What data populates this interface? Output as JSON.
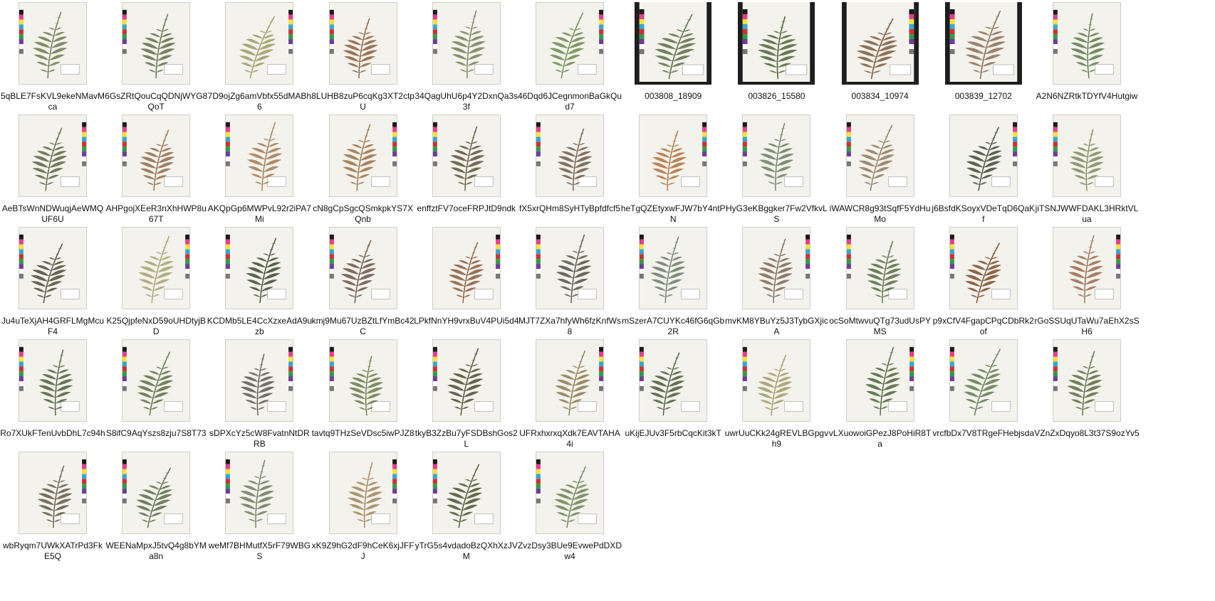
{
  "items": [
    {
      "name": "5qBLE7FsKVL9ekeNMavMca",
      "thumb": "fern-specimen-thumbnail",
      "tone": "#6d7a4c"
    },
    {
      "name": "6GsZRtQouCqQDNjWYG8QoT",
      "thumb": "fern-specimen-thumbnail",
      "tone": "#5f6d47"
    },
    {
      "name": "7D9ojZg6amVbfx55dMABh6",
      "thumb": "fern-specimen-thumbnail",
      "tone": "#9a9a63"
    },
    {
      "name": "8LUHB8zuP6cqKg3XT2ctpU",
      "thumb": "fern-specimen-thumbnail",
      "tone": "#8b5e3c"
    },
    {
      "name": "34QagUhU6p4Y2DxnQa3s3f",
      "thumb": "fern-specimen-thumbnail",
      "tone": "#748058"
    },
    {
      "name": "46Dqd6JCegnmonBaGkQud7",
      "thumb": "fern-specimen-thumbnail",
      "tone": "#6a8a4e"
    },
    {
      "name": "003808_18909",
      "thumb": "fern-specimen-thumbnail",
      "tone": "#5b6e45"
    },
    {
      "name": "003826_15580",
      "thumb": "fern-specimen-thumbnail",
      "tone": "#4f6637"
    },
    {
      "name": "003834_10974",
      "thumb": "fern-specimen-thumbnail",
      "tone": "#7a5a3c"
    },
    {
      "name": "003839_12702",
      "thumb": "fern-specimen-thumbnail",
      "tone": "#8a6e54"
    },
    {
      "name": "A2N6NZRtkTDYfV4Hutgiw",
      "thumb": "fern-specimen-thumbnail",
      "tone": "#5c7a48"
    },
    {
      "name": "AeBTsWnNDWuqjAeWMQUF6U",
      "thumb": "fern-specimen-thumbnail",
      "tone": "#5b6442"
    },
    {
      "name": "AHPgojXEeR3nXhHWP8u67T",
      "thumb": "fern-specimen-thumbnail",
      "tone": "#8f6a48"
    },
    {
      "name": "AKQpGp6MWPvL92r2iPA7Mi",
      "thumb": "fern-specimen-thumbnail",
      "tone": "#a37a52"
    },
    {
      "name": "cN8gCpSgcQSmkpkYS7XQnb",
      "thumb": "fern-specimen-thumbnail",
      "tone": "#9b6e45"
    },
    {
      "name": "enffztFV7oceFRPJtD9ndk",
      "thumb": "fern-specimen-thumbnail",
      "tone": "#5a5238"
    },
    {
      "name": "fX5xrQHm8SyHTyBpfdfcf5",
      "thumb": "fern-specimen-thumbnail",
      "tone": "#6b5a44"
    },
    {
      "name": "heTgQZEtyxwFJW7bY4ntPN",
      "thumb": "fern-specimen-thumbnail",
      "tone": "#b0703c"
    },
    {
      "name": "HyG3eKBggker7Fw2VfkvLS",
      "thumb": "fern-specimen-thumbnail",
      "tone": "#6a7c60"
    },
    {
      "name": "iWAWCR8g93tSqfF5YdHuMo",
      "thumb": "fern-specimen-thumbnail",
      "tone": "#8e7a5e"
    },
    {
      "name": "j6BsfdKSoyxVDeTqD6QaKf",
      "thumb": "fern-specimen-thumbnail",
      "tone": "#3f4a36"
    },
    {
      "name": "jiTSNJWWFDAKL3HRktVLua",
      "thumb": "fern-specimen-thumbnail",
      "tone": "#7e8a5a"
    },
    {
      "name": "Ju4uTeXjAH4GRFLMgMcuF4",
      "thumb": "fern-specimen-thumbnail",
      "tone": "#4e4a36"
    },
    {
      "name": "K25QjpfeNxD59oUHDtyjBD",
      "thumb": "fern-specimen-thumbnail",
      "tone": "#a4a36e"
    },
    {
      "name": "KCDMb5LE4CcXzxeAdA9uzb",
      "thumb": "fern-specimen-thumbnail",
      "tone": "#3e4a32"
    },
    {
      "name": "kmj9Mu67UzBZtLfYmBc42C",
      "thumb": "fern-specimen-thumbnail",
      "tone": "#6a5446"
    },
    {
      "name": "LPkfNnYH9vrxBuV4PUi5d4",
      "thumb": "fern-specimen-thumbnail",
      "tone": "#8a5a3c"
    },
    {
      "name": "MJT7ZXa7hfyWh6fzKnfWs8",
      "thumb": "fern-specimen-thumbnail",
      "tone": "#4e5242"
    },
    {
      "name": "mSzerA7CUYKc46fG6qGb2R",
      "thumb": "fern-specimen-thumbnail",
      "tone": "#6b7a66"
    },
    {
      "name": "mvKM8YBuYz5J3TybGXjicA",
      "thumb": "fern-specimen-thumbnail",
      "tone": "#7b6656"
    },
    {
      "name": "ocSoMtwvuQTg73udUsPYMS",
      "thumb": "fern-specimen-thumbnail",
      "tone": "#556b40"
    },
    {
      "name": "p9xCfV4FgapCPqCDbRk2of",
      "thumb": "fern-specimen-thumbnail",
      "tone": "#7a4a2a"
    },
    {
      "name": "rGoSSUqUTaWu7aEhX2sSH6",
      "thumb": "fern-specimen-thumbnail",
      "tone": "#9a6a4c"
    },
    {
      "name": "Ro7XUkFTenUvbDhL7c94h",
      "thumb": "fern-specimen-thumbnail",
      "tone": "#4e5e3e"
    },
    {
      "name": "S8ifC9AqYszs8zju7S8T73",
      "thumb": "fern-specimen-thumbnail",
      "tone": "#5a6e44"
    },
    {
      "name": "sDPXcYz5cW8FvatnNtDRRB",
      "thumb": "fern-specimen-thumbnail",
      "tone": "#5a5a4e"
    },
    {
      "name": "tavtq9THzSeVDsc5iwPJZ8",
      "thumb": "fern-specimen-thumbnail",
      "tone": "#6a7a48"
    },
    {
      "name": "tkyB3ZzBu7yFSDBshGos2L",
      "thumb": "fern-specimen-thumbnail",
      "tone": "#4a4a30"
    },
    {
      "name": "UFRxhxrxqXdk7EAVTAHA4i",
      "thumb": "fern-specimen-thumbnail",
      "tone": "#8a7a50"
    },
    {
      "name": "uKijEJUv3F5rbCqcKit3kT",
      "thumb": "fern-specimen-thumbnail",
      "tone": "#4a5a3c"
    },
    {
      "name": "uwrUuCKk24gREVLBGpgvh9",
      "thumb": "fern-specimen-thumbnail",
      "tone": "#a09a66"
    },
    {
      "name": "vLXuowoiGPezJ8PoHiR8Ta",
      "thumb": "fern-specimen-thumbnail",
      "tone": "#4a6436"
    },
    {
      "name": "vrcfbDx7V8TRgeFHebjsda",
      "thumb": "fern-specimen-thumbnail",
      "tone": "#5e7a4e"
    },
    {
      "name": "VZnZxDqyo8L3t37S9ozYv5",
      "thumb": "fern-specimen-thumbnail",
      "tone": "#5a6a40"
    },
    {
      "name": "wbRyqm7UWkXATrPd3FkE5Q",
      "thumb": "fern-specimen-thumbnail",
      "tone": "#5e5a44"
    },
    {
      "name": "WEENaMpxJ5tvQ4g8bYMa8n",
      "thumb": "fern-specimen-thumbnail",
      "tone": "#5a6a4a"
    },
    {
      "name": "weMf7BHMutfX5rF79WBGS",
      "thumb": "fern-specimen-thumbnail",
      "tone": "#6c7a5a"
    },
    {
      "name": "xK9Z9hG2dF9hCeK6xjJFFJ",
      "thumb": "fern-specimen-thumbnail",
      "tone": "#a0845a"
    },
    {
      "name": "yTrG5s4vdadoBzQXhXzJVM",
      "thumb": "fern-specimen-thumbnail",
      "tone": "#4a5430"
    },
    {
      "name": "ZvzDsy3BUe9EvwePdDXDw4",
      "thumb": "fern-specimen-thumbnail",
      "tone": "#6a8452"
    }
  ]
}
